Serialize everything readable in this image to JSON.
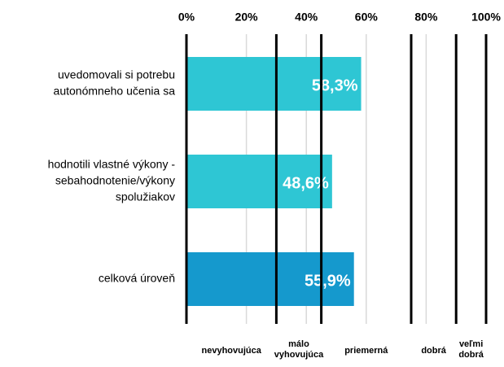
{
  "chart_data": {
    "type": "bar",
    "orientation": "horizontal",
    "categories": [
      [
        "uvedomovali  si potrebu",
        "autonómneho učenia sa"
      ],
      [
        "hodnotili vlastné výkony -",
        "sebahodnotenie/výkony",
        "spolužiakov"
      ],
      [
        "celková úroveň"
      ]
    ],
    "values": [
      58.3,
      48.6,
      55.9
    ],
    "value_labels": [
      "58,3%",
      "48,6%",
      "55,9%"
    ],
    "colors": [
      "#2ec6d4",
      "#2ec6d4",
      "#1599cd"
    ],
    "xlim": [
      0,
      100
    ],
    "xticks": [
      {
        "value": 0,
        "label": "0%"
      },
      {
        "value": 20,
        "label": "20%"
      },
      {
        "value": 40,
        "label": "40%"
      },
      {
        "value": 60,
        "label": "60%"
      },
      {
        "value": 80,
        "label": "80%"
      },
      {
        "value": 100,
        "label": "100%"
      }
    ],
    "grid": true,
    "thresholds": [
      0,
      30,
      45,
      75,
      90,
      100
    ],
    "band_labels": [
      [
        "nevyhovujúca"
      ],
      [
        "málo",
        "vyhovujúca"
      ],
      [
        "priemerná"
      ],
      [
        "dobrá"
      ],
      [
        "veľmi",
        "dobrá"
      ]
    ]
  }
}
